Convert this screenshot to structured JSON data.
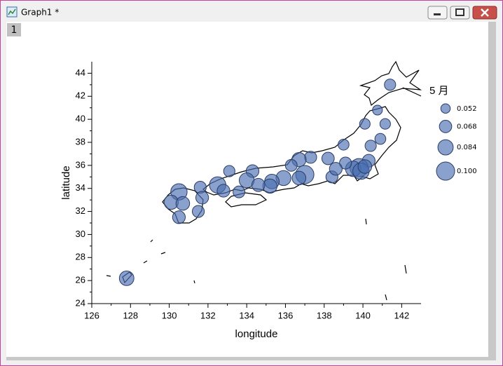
{
  "window": {
    "title": "Graph1 *",
    "layer": "1"
  },
  "chart_data": {
    "type": "bubble",
    "x_label": "longitude",
    "y_label": "latitude",
    "xlim": [
      126,
      143
    ],
    "ylim": [
      24,
      45
    ],
    "xticks": [
      126,
      128,
      130,
      132,
      134,
      136,
      138,
      140,
      142
    ],
    "yticks": [
      24,
      26,
      28,
      30,
      32,
      34,
      36,
      38,
      40,
      42,
      44
    ],
    "color": "#4a6fb0",
    "series": [
      {
        "name": "5 月",
        "x": [
          141.4,
          140.75,
          140.1,
          141.15,
          140.9,
          140.4,
          139.0,
          140.3,
          139.8,
          139.5,
          139.9,
          140.1,
          138.2,
          137.3,
          136.7,
          136.3,
          139.1,
          138.4,
          138.6,
          137.0,
          136.7,
          135.9,
          135.3,
          135.2,
          134.3,
          134.0,
          134.6,
          133.1,
          133.6,
          132.5,
          132.8,
          131.6,
          131.7,
          131.5,
          130.5,
          130.1,
          130.7,
          130.5,
          127.8
        ],
        "y": [
          43.0,
          40.8,
          39.6,
          39.6,
          38.3,
          37.7,
          37.8,
          36.4,
          35.8,
          35.7,
          35.5,
          35.9,
          36.6,
          36.7,
          36.5,
          36.0,
          36.2,
          35.0,
          35.7,
          35.2,
          34.9,
          34.9,
          34.6,
          34.2,
          35.5,
          34.7,
          34.3,
          35.5,
          33.7,
          34.3,
          33.8,
          34.1,
          33.2,
          32.0,
          33.7,
          32.8,
          32.7,
          31.5,
          26.2
        ],
        "sizes": [
          0.062,
          0.054,
          0.058,
          0.058,
          0.06,
          0.062,
          0.06,
          0.07,
          0.1,
          0.085,
          0.09,
          0.075,
          0.068,
          0.066,
          0.078,
          0.065,
          0.066,
          0.066,
          0.07,
          0.1,
          0.075,
          0.082,
          0.08,
          0.078,
          0.07,
          0.082,
          0.072,
          0.062,
          0.065,
          0.09,
          0.07,
          0.066,
          0.07,
          0.066,
          0.09,
          0.078,
          0.075,
          0.07,
          0.08
        ]
      }
    ],
    "size_legend": [
      0.052,
      0.068,
      0.084,
      {
        "value": 0.1,
        "label": "0.100"
      }
    ]
  }
}
